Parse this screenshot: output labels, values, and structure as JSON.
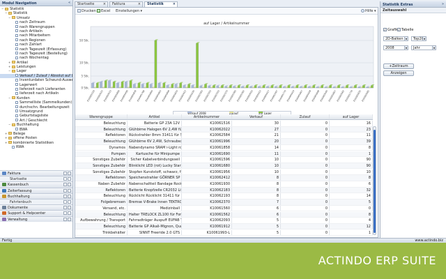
{
  "left_panel": {
    "title": "Modul Navigation",
    "tree": [
      {
        "label": "Statistik",
        "level": 0,
        "type": "folder",
        "toggle": "−"
      },
      {
        "label": "Statistik",
        "level": 1,
        "type": "folder",
        "toggle": "−"
      },
      {
        "label": "Umsatz",
        "level": 2,
        "type": "folder",
        "toggle": "−"
      },
      {
        "label": "nach Zeitraum",
        "level": 3,
        "type": "doc"
      },
      {
        "label": "nach Warengruppen",
        "level": 3,
        "type": "doc"
      },
      {
        "label": "nach Artikeln",
        "level": 3,
        "type": "doc"
      },
      {
        "label": "nach Mitarbeitern",
        "level": 3,
        "type": "doc"
      },
      {
        "label": "nach Regionen",
        "level": 3,
        "type": "doc"
      },
      {
        "label": "nach Zahlart",
        "level": 3,
        "type": "doc"
      },
      {
        "label": "nach Tageszeit (Erfassung)",
        "level": 3,
        "type": "doc"
      },
      {
        "label": "nach Tageszeit (Bestellung)",
        "level": 3,
        "type": "doc"
      },
      {
        "label": "nach Wochentag",
        "level": 3,
        "type": "doc"
      },
      {
        "label": "Artikel",
        "level": 2,
        "type": "folder",
        "toggle": "+"
      },
      {
        "label": "Leistungen",
        "level": 2,
        "type": "folder",
        "toggle": "+"
      },
      {
        "label": "Lager",
        "level": 2,
        "type": "folder",
        "toggle": "−"
      },
      {
        "label": "Verkauf / Zulauf / Absolut auf Lager",
        "level": 3,
        "type": "doc",
        "selected": true
      },
      {
        "label": "Inventurdaten Schwund-Auswertung",
        "level": 3,
        "type": "doc"
      },
      {
        "label": "Lagerwert",
        "level": 3,
        "type": "doc"
      },
      {
        "label": "lieferzeit nach Lieferanten",
        "level": 3,
        "type": "doc"
      },
      {
        "label": "lieferzeit nach Artikeln",
        "level": 3,
        "type": "doc"
      },
      {
        "label": "Kunden",
        "level": 2,
        "type": "folder",
        "toggle": "−"
      },
      {
        "label": "Sammelliste (Sammelkunden)",
        "level": 3,
        "type": "doc"
      },
      {
        "label": "durchschn. Bearbeitungszeit",
        "level": 3,
        "type": "doc"
      },
      {
        "label": "Umsatzgrund",
        "level": 3,
        "type": "doc"
      },
      {
        "label": "Geburtstagsliste",
        "level": 3,
        "type": "doc"
      },
      {
        "label": "Art / Geschlecht",
        "level": 3,
        "type": "doc"
      },
      {
        "label": "Buchhaltung",
        "level": 2,
        "type": "folder",
        "toggle": "−"
      },
      {
        "label": "BWA",
        "level": 3,
        "type": "doc"
      },
      {
        "label": "Belege",
        "level": 1,
        "type": "folder",
        "toggle": "+"
      },
      {
        "label": "offene Posten",
        "level": 1,
        "type": "folder",
        "toggle": "+"
      },
      {
        "label": "kombinierte Statistiken",
        "level": 1,
        "type": "folder",
        "toggle": "+"
      },
      {
        "label": "RWA",
        "level": 2,
        "type": "doc"
      }
    ],
    "modules": [
      {
        "label": "Faktura",
        "sub": false,
        "color": "#5a86c5"
      },
      {
        "label": "Startseite",
        "sub": true
      },
      {
        "label": "Kassenbuch",
        "sub": false,
        "color": "#4c8a3e"
      },
      {
        "label": "Zeiterfassung",
        "sub": false,
        "color": "#3a77b8"
      },
      {
        "label": "Buchhaltung",
        "sub": false,
        "color": "#c8962e"
      },
      {
        "label": "Fahrtenbuch",
        "sub": true
      },
      {
        "label": "Dokumente",
        "sub": false,
        "color": "#6b7f99"
      },
      {
        "label": "Support & Helpcenter",
        "sub": false,
        "color": "#d06a2a"
      },
      {
        "label": "Verwaltung",
        "sub": false,
        "color": "#8a6fb0"
      }
    ]
  },
  "tabs": [
    {
      "label": "Startseite",
      "active": false
    },
    {
      "label": "Faktura",
      "active": false
    },
    {
      "label": "Statistik",
      "active": true
    }
  ],
  "toolbar": {
    "print": "Drucken",
    "excel": "Excel",
    "settings": "Einstellungen ▾",
    "help": "Hilfe ▾"
  },
  "chart_data": {
    "type": "bar",
    "title": "auf Lager / Artikelnummer",
    "ylabel": "",
    "yticks": [
      "0 Stk.",
      "5 Stk.",
      "10 Stk.",
      "50 Stk."
    ],
    "categories": [
      "K10061516",
      "K10062022",
      "K10062023",
      "K10061806",
      "K10061996",
      "K10061858",
      "K10061768",
      "K10061800",
      "K10061803",
      "K10061806",
      "K10061833",
      "K10062412",
      "K10061930",
      "K10062183",
      "K10062193",
      "K10062193",
      "K10062370",
      "K10061560",
      "K10061562",
      "K10062093",
      "K10061912",
      "K10061917",
      "K10062167",
      "K10061770",
      "K10061914",
      "K10061807",
      "K10061958",
      "K10061848",
      "K10062040",
      "K10061807",
      "K10062062",
      "K10061776",
      "K10061835",
      "K10062085"
    ],
    "series": [
      {
        "name": "Verkauf 2008",
        "color": "#a8b8d8",
        "values": [
          2,
          2.5,
          3,
          2,
          2.5,
          1.5,
          1.5,
          1.5,
          2,
          1,
          1.5,
          1,
          1,
          0.8,
          0.8,
          0.8,
          0.6,
          0.6,
          0.5,
          0.5,
          0.5,
          0.5,
          0.5,
          0.4,
          0.4,
          0.4,
          0.4,
          0.3,
          0.3,
          0.3,
          0.3,
          0.3,
          0.3,
          0.3
        ]
      },
      {
        "name": "Zulauf",
        "color": "#e3e39a",
        "values": [
          0,
          0,
          0,
          0,
          0,
          0,
          0,
          0,
          0,
          0,
          0,
          0,
          0,
          0,
          0,
          0,
          0,
          0,
          0,
          0,
          0,
          0,
          0,
          0,
          0,
          0,
          0,
          0,
          0,
          0,
          0,
          0,
          0,
          0
        ]
      },
      {
        "name": "auf Lager",
        "color": "#8cc63f",
        "values": [
          2,
          3,
          2.5,
          2.5,
          3,
          2,
          2,
          50,
          2,
          1.5,
          2,
          1.5,
          45,
          1.5,
          1,
          1,
          1,
          1,
          1,
          1,
          1,
          1,
          1,
          1,
          1,
          1,
          1,
          1,
          1,
          1,
          1,
          1,
          1,
          1
        ]
      }
    ]
  },
  "grid": {
    "columns": [
      "Warengruppe",
      "Artikel",
      "Artikelnummer",
      "Verkauf",
      "Zulauf",
      "auf Lager"
    ],
    "rows": [
      [
        "Beleuchtung",
        "Batterie GP 23A 12V",
        "K10061516",
        "30",
        "0",
        "16"
      ],
      [
        "Beleuchtung",
        "Glühbirne Halogen 6V 2,4W für f",
        "K10062022",
        "27",
        "0",
        "23"
      ],
      [
        "Reflektoren",
        "Rückstrahler 8mm 31411 für Spe",
        "K10062584",
        "21",
        "0",
        "11"
      ],
      [
        "Beleuchtung",
        "Glühbirne 6V 2,4W, Schraubsockel",
        "K10061996",
        "20",
        "0",
        "39"
      ],
      [
        "Dynamos",
        "Nabendynamo SRAM i-Light rot",
        "K10061858",
        "14",
        "0",
        "8"
      ],
      [
        "Pumpen",
        "Kartusche für Minipumpe",
        "K10061690",
        "11",
        "0",
        "1"
      ],
      [
        "Sonstiges Zubehör",
        "Sicher Kabelverbindungsseil",
        "K10061596",
        "10",
        "0",
        "90"
      ],
      [
        "Sonstiges Zubehör",
        "Blinklicht LED (rot) Lucky Star",
        "K10061680",
        "10",
        "0",
        "90"
      ],
      [
        "Sonstiges Zubehör",
        "Stopfen Kunststoff, schwarz, für",
        "K10061956",
        "10",
        "0",
        "10"
      ],
      [
        "Reflektoren",
        "Speichenstrahler GÖRNER SP",
        "K10062412",
        "8",
        "0",
        "8"
      ],
      [
        "Naben Zubehör",
        "Nabenschaltteil Bandage Rockit",
        "K10061930",
        "8",
        "0",
        "6"
      ],
      [
        "Reflektoren",
        "Batterie Knopfzelle CR2032 Lithi",
        "K10062183",
        "8",
        "0",
        "32"
      ],
      [
        "Beleuchtung",
        "Rücklicht Rücklicht 31411 für Sp",
        "K10062193",
        "8",
        "0",
        "14"
      ],
      [
        "Folgebremsen",
        "Bremse V-Brake Innen TEKTRO R",
        "K10062370",
        "7",
        "0",
        "5"
      ],
      [
        "Versand, etc.",
        "Medizinball",
        "K10061560",
        "6",
        "0",
        "0"
      ],
      [
        "Beleuchtung",
        "Halter TRELOCK ZL100 für Forum",
        "K10061562",
        "6",
        "0",
        "8"
      ],
      [
        "Aufbewahrung / Transport",
        "Fahrradträger Auspuff EUFAB Y",
        "K10062093",
        "5",
        "0",
        "4"
      ],
      [
        "Beleuchtung",
        "Batterie GP Alkali-Mignon, Quali",
        "K10061912",
        "5",
        "0",
        "12"
      ],
      [
        "Trinkbehälter",
        "SINNT Freeride 2.0 GTS",
        "K10061993-L",
        "5",
        "0",
        "1"
      ]
    ]
  },
  "right_panel": {
    "title": "Statistik Extras",
    "section": "Zeitauswahl",
    "grafik_label": "Grafik",
    "tabelle_label": "Tabelle",
    "chart_type": "2D-Balken",
    "top": "Top20",
    "year": "2008",
    "period": "Jahr",
    "add_button": "+Zeitraum",
    "show_button": "Anzeigen"
  },
  "status": {
    "left": "Fertig",
    "right": "www.actindo.biz"
  },
  "brand": "ACTINDO ERP SUITE"
}
